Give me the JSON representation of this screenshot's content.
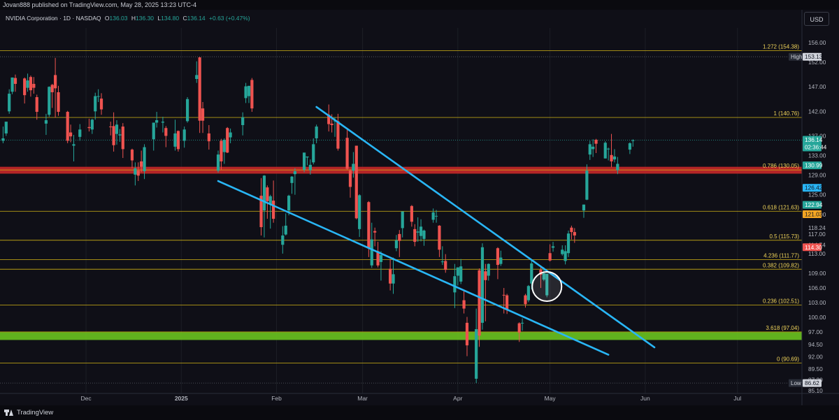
{
  "header": {
    "publisher": "Jovan888 published on TradingView.com, May 28, 2025 13:23 UTC-4"
  },
  "symbol": {
    "name": "NVIDIA Corporation · 1D · NASDAQ",
    "open_label": "O",
    "open": "136.03",
    "high_label": "H",
    "high": "136.30",
    "low_label": "L",
    "low": "134.80",
    "close_label": "C",
    "close": "136.14",
    "change": "+0.63 (+0.47%)"
  },
  "currency": "USD",
  "footer": {
    "brand": "TradingView"
  },
  "colors": {
    "background": "#0f0f17",
    "up": "#26a69a",
    "down": "#ef5350",
    "fib_line": "#d4b515",
    "fib_text": "#f0d45a",
    "trendline": "#29b6f6",
    "support_band": "#66bb1f",
    "resistance_band": "#c62828",
    "grid": "#1c1e26"
  },
  "price_axis": {
    "range": [
      84.5,
      159.0
    ],
    "ticks": [
      "156.00",
      "152.00",
      "147.00",
      "142.00",
      "137.00",
      "133.00",
      "129.00",
      "125.00",
      "121.00",
      "118.24",
      "117.00",
      "114.74",
      "113.00",
      "109.00",
      "106.00",
      "103.00",
      "100.00",
      "97.00",
      "94.50",
      "92.00",
      "89.50",
      "87.30",
      "85.10"
    ],
    "badges": [
      {
        "text": "High",
        "value": "153.13",
        "price": 153.13,
        "bg": "#d1d4dc",
        "fg": "#131722",
        "label_bg": "#2a2e39"
      },
      {
        "text": "",
        "value": "136.14",
        "sub": "02:36:44",
        "price": 136.14,
        "bg": "#26a69a",
        "fg": "#ffffff"
      },
      {
        "text": "",
        "value": "130.99",
        "price": 130.99,
        "bg": "#26a69a",
        "fg": "#ffffff"
      },
      {
        "text": "",
        "value": "126.42",
        "price": 126.42,
        "bg": "#29b6f6",
        "fg": "#131722"
      },
      {
        "text": "",
        "value": "122.94",
        "price": 122.94,
        "bg": "#26a69a",
        "fg": "#ffffff"
      },
      {
        "text": "",
        "value": "121.03",
        "price": 121.03,
        "bg": "#f5a623",
        "fg": "#131722"
      },
      {
        "text": "",
        "value": "114.30",
        "price": 114.3,
        "bg": "#ef5350",
        "fg": "#ffffff"
      },
      {
        "text": "Low",
        "value": "86.62",
        "price": 86.62,
        "bg": "#d1d4dc",
        "fg": "#131722",
        "label_bg": "#2a2e39"
      }
    ]
  },
  "time_axis": {
    "labels": [
      {
        "text": "Dec",
        "bold": false
      },
      {
        "text": "2025",
        "bold": true
      },
      {
        "text": "Feb",
        "bold": false
      },
      {
        "text": "Mar",
        "bold": false
      },
      {
        "text": "Apr",
        "bold": false
      },
      {
        "text": "May",
        "bold": false
      },
      {
        "text": "Jun",
        "bold": false
      },
      {
        "text": "Jul",
        "bold": false
      }
    ]
  },
  "fib_levels": [
    {
      "label": "1.272 (154.38)",
      "price": 154.38
    },
    {
      "label": "1 (140.76)",
      "price": 140.76
    },
    {
      "label": "0.786 (130.05)",
      "price": 130.05
    },
    {
      "label": "0.618 (121.63)",
      "price": 121.63
    },
    {
      "label": "0.5 (115.73)",
      "price": 115.73
    },
    {
      "label": "4.236 (111.77)",
      "price": 111.77
    },
    {
      "label": "0.382 (109.82)",
      "price": 109.82
    },
    {
      "label": "0.236 (102.51)",
      "price": 102.51
    },
    {
      "label": "3.618 (97.04)",
      "price": 97.04
    },
    {
      "label": "0 (90.69)",
      "price": 90.69
    }
  ],
  "bands": [
    {
      "name": "resistance",
      "from": 129.3,
      "to": 130.7
    },
    {
      "name": "support",
      "from": 95.4,
      "to": 97.0
    }
  ],
  "extremes": {
    "high": 153.13,
    "low": 86.62,
    "last": 136.14
  },
  "trendlines": [
    {
      "name": "wedge-upper",
      "from": {
        "date": "2025-02-14",
        "price": 142.9
      },
      "to": {
        "date": "2025-06-04",
        "price": 93.9
      }
    },
    {
      "name": "wedge-lower",
      "from": {
        "date": "2025-01-13",
        "price": 127.8
      },
      "to": {
        "date": "2025-05-20",
        "price": 92.4
      }
    }
  ],
  "highlight": {
    "date": "2025-04-30",
    "price": 106.3
  },
  "chart_data": {
    "type": "candlestick",
    "title": "NVIDIA Corporation · 1D · NASDAQ",
    "x_range": [
      "2024-11-03",
      "2025-07-22"
    ],
    "ylim": [
      84.5,
      159.0
    ],
    "candles": [
      [
        "2024-11-04",
        136.0,
        138.9,
        135.5,
        136.5
      ],
      [
        "2024-11-05",
        137.5,
        139.8,
        137.0,
        139.9
      ],
      [
        "2024-11-06",
        142.0,
        146.5,
        141.5,
        145.6
      ],
      [
        "2024-11-07",
        146.0,
        148.9,
        145.5,
        148.9
      ],
      [
        "2024-11-08",
        148.8,
        149.5,
        146.0,
        147.6
      ],
      [
        "2024-11-11",
        148.7,
        148.9,
        143.6,
        145.3
      ],
      [
        "2024-11-12",
        146.8,
        149.7,
        146.0,
        148.3
      ],
      [
        "2024-11-13",
        149.0,
        149.3,
        145.0,
        146.3
      ],
      [
        "2024-11-14",
        147.6,
        149.0,
        145.6,
        146.8
      ],
      [
        "2024-11-15",
        144.9,
        145.4,
        140.3,
        141.9
      ],
      [
        "2024-11-18",
        139.5,
        141.5,
        137.2,
        140.2
      ],
      [
        "2024-11-19",
        141.3,
        147.1,
        140.9,
        147.0
      ],
      [
        "2024-11-20",
        147.4,
        147.6,
        142.7,
        145.9
      ],
      [
        "2024-11-21",
        149.4,
        152.9,
        140.7,
        146.7
      ],
      [
        "2024-11-22",
        145.9,
        147.2,
        141.1,
        141.9
      ],
      [
        "2024-11-25",
        141.9,
        142.1,
        135.5,
        136.0
      ],
      [
        "2024-11-26",
        137.7,
        139.3,
        135.7,
        136.9
      ],
      [
        "2024-11-27",
        135.0,
        137.2,
        131.8,
        135.3
      ],
      [
        "2024-11-29",
        136.8,
        139.4,
        136.0,
        138.3
      ],
      [
        "2024-12-02",
        138.8,
        140.5,
        137.9,
        138.6
      ],
      [
        "2024-12-03",
        138.3,
        140.5,
        137.4,
        140.3
      ],
      [
        "2024-12-04",
        142.0,
        145.8,
        140.3,
        145.1
      ],
      [
        "2024-12-05",
        145.1,
        146.5,
        143.9,
        145.1
      ],
      [
        "2024-12-06",
        144.6,
        145.7,
        141.3,
        142.4
      ],
      [
        "2024-12-09",
        138.9,
        139.9,
        137.1,
        138.8
      ],
      [
        "2024-12-10",
        139.0,
        141.8,
        133.8,
        135.1
      ],
      [
        "2024-12-11",
        137.4,
        140.2,
        135.2,
        139.3
      ],
      [
        "2024-12-12",
        137.1,
        138.4,
        135.8,
        137.3
      ],
      [
        "2024-12-13",
        138.9,
        139.6,
        132.5,
        134.3
      ],
      [
        "2024-12-16",
        134.2,
        134.4,
        130.4,
        132.0
      ],
      [
        "2024-12-17",
        129.1,
        131.6,
        126.9,
        130.4
      ],
      [
        "2024-12-18",
        129.9,
        131.6,
        127.8,
        128.9
      ],
      [
        "2024-12-19",
        131.8,
        134.0,
        129.6,
        130.7
      ],
      [
        "2024-12-20",
        129.8,
        135.3,
        128.2,
        134.7
      ],
      [
        "2024-12-23",
        136.3,
        139.0,
        134.0,
        139.7
      ],
      [
        "2024-12-24",
        139.7,
        141.9,
        138.7,
        140.2
      ],
      [
        "2024-12-26",
        139.7,
        140.9,
        137.7,
        139.9
      ],
      [
        "2024-12-27",
        138.6,
        139.0,
        134.7,
        137.0
      ],
      [
        "2024-12-30",
        134.8,
        140.3,
        134.0,
        137.5
      ],
      [
        "2024-12-31",
        138.0,
        138.1,
        133.8,
        134.3
      ],
      [
        "2025-01-02",
        136.0,
        138.9,
        134.6,
        138.3
      ],
      [
        "2025-01-03",
        140.0,
        144.9,
        139.7,
        144.5
      ],
      [
        "2025-01-06",
        148.6,
        152.2,
        147.8,
        149.4
      ],
      [
        "2025-01-07",
        153.0,
        153.1,
        137.6,
        140.1
      ],
      [
        "2025-01-08",
        142.6,
        143.9,
        137.6,
        140.1
      ],
      [
        "2025-01-10",
        137.5,
        139.2,
        134.2,
        135.9
      ],
      [
        "2025-01-13",
        129.9,
        134.0,
        129.5,
        133.2
      ],
      [
        "2025-01-14",
        136.0,
        136.4,
        130.1,
        131.8
      ],
      [
        "2025-01-15",
        133.7,
        136.5,
        131.3,
        136.2
      ],
      [
        "2025-01-16",
        138.6,
        138.8,
        133.5,
        133.6
      ],
      [
        "2025-01-17",
        136.7,
        138.5,
        135.5,
        137.7
      ],
      [
        "2025-01-21",
        139.2,
        141.8,
        137.1,
        140.8
      ],
      [
        "2025-01-22",
        144.7,
        147.8,
        143.7,
        147.1
      ],
      [
        "2025-01-23",
        145.1,
        147.2,
        143.7,
        147.2
      ],
      [
        "2025-01-24",
        148.4,
        148.8,
        141.9,
        142.6
      ],
      [
        "2025-01-27",
        124.8,
        128.4,
        116.7,
        118.4
      ],
      [
        "2025-01-28",
        121.8,
        129.0,
        116.3,
        128.9
      ],
      [
        "2025-01-29",
        126.5,
        126.9,
        120.1,
        123.7
      ],
      [
        "2025-01-30",
        123.1,
        125.0,
        118.1,
        124.7
      ],
      [
        "2025-01-31",
        123.8,
        127.9,
        119.3,
        120.1
      ],
      [
        "2025-02-03",
        114.8,
        118.6,
        113.0,
        116.7
      ],
      [
        "2025-02-04",
        116.9,
        121.2,
        116.7,
        118.7
      ],
      [
        "2025-02-05",
        121.8,
        125.0,
        120.8,
        124.8
      ],
      [
        "2025-02-06",
        127.4,
        128.8,
        125.2,
        128.7
      ],
      [
        "2025-02-07",
        129.2,
        130.4,
        125.0,
        129.8
      ],
      [
        "2025-02-10",
        130.1,
        133.0,
        129.6,
        133.6
      ],
      [
        "2025-02-11",
        132.6,
        132.7,
        131.0,
        132.8
      ],
      [
        "2025-02-12",
        130.0,
        132.2,
        129.1,
        131.1
      ],
      [
        "2025-02-13",
        131.6,
        136.5,
        131.2,
        135.3
      ],
      [
        "2025-02-14",
        136.5,
        139.3,
        135.5,
        138.9
      ],
      [
        "2025-02-18",
        141.3,
        143.4,
        137.9,
        139.4
      ],
      [
        "2025-02-19",
        139.5,
        141.4,
        137.7,
        139.2
      ],
      [
        "2025-02-20",
        140.0,
        140.7,
        136.8,
        140.1
      ],
      [
        "2025-02-21",
        140.0,
        141.5,
        134.0,
        134.4
      ],
      [
        "2025-02-24",
        136.6,
        138.6,
        130.1,
        130.3
      ],
      [
        "2025-02-25",
        129.9,
        130.2,
        124.4,
        126.6
      ],
      [
        "2025-02-26",
        129.9,
        133.7,
        128.5,
        131.3
      ],
      [
        "2025-02-27",
        135.0,
        135.0,
        120.0,
        120.2
      ],
      [
        "2025-02-28",
        118.0,
        125.1,
        116.4,
        124.9
      ],
      [
        "2025-03-03",
        123.5,
        123.7,
        112.3,
        114.1
      ],
      [
        "2025-03-04",
        110.6,
        119.3,
        110.1,
        115.9
      ],
      [
        "2025-03-05",
        117.6,
        118.3,
        114.5,
        117.3
      ],
      [
        "2025-03-06",
        113.5,
        115.4,
        110.2,
        110.6
      ],
      [
        "2025-03-07",
        111.3,
        113.5,
        107.5,
        112.7
      ],
      [
        "2025-03-10",
        109.9,
        111.9,
        105.5,
        106.9
      ],
      [
        "2025-03-11",
        106.9,
        112.2,
        104.8,
        108.8
      ],
      [
        "2025-03-12",
        114.1,
        116.8,
        113.5,
        115.7
      ],
      [
        "2025-03-13",
        117.0,
        117.8,
        112.3,
        115.6
      ],
      [
        "2025-03-14",
        118.2,
        121.1,
        116.3,
        121.6
      ],
      [
        "2025-03-17",
        122.7,
        122.9,
        118.5,
        119.5
      ],
      [
        "2025-03-18",
        118.0,
        119.0,
        114.5,
        115.4
      ],
      [
        "2025-03-19",
        117.3,
        120.4,
        115.4,
        117.5
      ],
      [
        "2025-03-20",
        116.6,
        120.0,
        115.5,
        118.5
      ],
      [
        "2025-03-21",
        116.0,
        117.9,
        114.6,
        117.7
      ],
      [
        "2025-03-24",
        119.9,
        122.2,
        119.3,
        121.4
      ],
      [
        "2025-03-25",
        120.6,
        121.9,
        119.3,
        120.7
      ],
      [
        "2025-03-26",
        118.7,
        118.8,
        112.3,
        113.8
      ],
      [
        "2025-03-27",
        111.4,
        114.5,
        110.7,
        111.4
      ],
      [
        "2025-03-28",
        111.5,
        112.9,
        109.1,
        109.7
      ],
      [
        "2025-03-31",
        105.1,
        110.9,
        101.9,
        108.4
      ],
      [
        "2025-04-01",
        108.5,
        110.2,
        106.5,
        110.2
      ],
      [
        "2025-04-02",
        107.3,
        111.9,
        106.8,
        110.4
      ],
      [
        "2025-04-03",
        103.5,
        105.6,
        100.8,
        101.8
      ],
      [
        "2025-04-04",
        98.9,
        100.1,
        92.1,
        94.3
      ],
      [
        "2025-04-07",
        87.5,
        101.8,
        86.6,
        97.6
      ],
      [
        "2025-04-08",
        109.6,
        110.0,
        94.0,
        96.3
      ],
      [
        "2025-04-09",
        98.9,
        115.1,
        97.5,
        114.3
      ],
      [
        "2025-04-10",
        109.4,
        110.9,
        99.2,
        107.6
      ],
      [
        "2025-04-11",
        108.5,
        111.0,
        107.5,
        110.9
      ],
      [
        "2025-04-14",
        114.1,
        114.3,
        107.8,
        110.7
      ],
      [
        "2025-04-15",
        110.9,
        113.6,
        110.5,
        112.2
      ],
      [
        "2025-04-16",
        104.6,
        106.0,
        100.8,
        104.5
      ],
      [
        "2025-04-17",
        104.5,
        104.8,
        100.7,
        101.5
      ],
      [
        "2025-04-21",
        98.8,
        99.0,
        95.0,
        96.9
      ],
      [
        "2025-04-22",
        98.8,
        99.8,
        97.3,
        98.9
      ],
      [
        "2025-04-23",
        104.5,
        104.8,
        102.0,
        102.7
      ],
      [
        "2025-04-24",
        103.5,
        106.6,
        103.1,
        106.4
      ],
      [
        "2025-04-25",
        106.9,
        111.9,
        105.7,
        111.0
      ],
      [
        "2025-04-28",
        109.7,
        110.4,
        106.0,
        108.7
      ],
      [
        "2025-04-29",
        107.7,
        110.2,
        107.4,
        109.0
      ],
      [
        "2025-04-30",
        104.5,
        108.9,
        104.1,
        108.9
      ],
      [
        "2025-05-01",
        113.1,
        114.9,
        111.4,
        111.6
      ],
      [
        "2025-05-02",
        114.2,
        115.4,
        113.4,
        114.5
      ],
      [
        "2025-05-05",
        112.9,
        114.7,
        112.6,
        113.8
      ],
      [
        "2025-05-06",
        111.5,
        114.7,
        110.8,
        113.5
      ],
      [
        "2025-05-07",
        113.1,
        117.7,
        112.3,
        117.1
      ],
      [
        "2025-05-08",
        118.3,
        118.7,
        115.9,
        117.4
      ],
      [
        "2025-05-09",
        117.4,
        118.2,
        115.2,
        116.7
      ],
      [
        "2025-05-12",
        121.8,
        123.0,
        120.3,
        123.0
      ],
      [
        "2025-05-13",
        124.0,
        131.2,
        123.9,
        129.9
      ],
      [
        "2025-05-14",
        133.2,
        136.0,
        132.1,
        135.3
      ],
      [
        "2025-05-15",
        134.3,
        136.3,
        132.7,
        134.8
      ],
      [
        "2025-05-16",
        136.2,
        136.4,
        133.5,
        135.4
      ],
      [
        "2025-05-19",
        132.4,
        135.9,
        132.4,
        135.6
      ],
      [
        "2025-05-20",
        134.3,
        134.6,
        132.0,
        134.4
      ],
      [
        "2025-05-21",
        133.1,
        137.4,
        130.6,
        131.8
      ],
      [
        "2025-05-22",
        132.2,
        134.3,
        131.6,
        132.8
      ],
      [
        "2025-05-23",
        130.0,
        132.7,
        129.2,
        131.3
      ],
      [
        "2025-05-27",
        134.2,
        135.7,
        133.3,
        135.5
      ],
      [
        "2025-05-28",
        136.0,
        136.3,
        134.8,
        136.1
      ]
    ]
  }
}
